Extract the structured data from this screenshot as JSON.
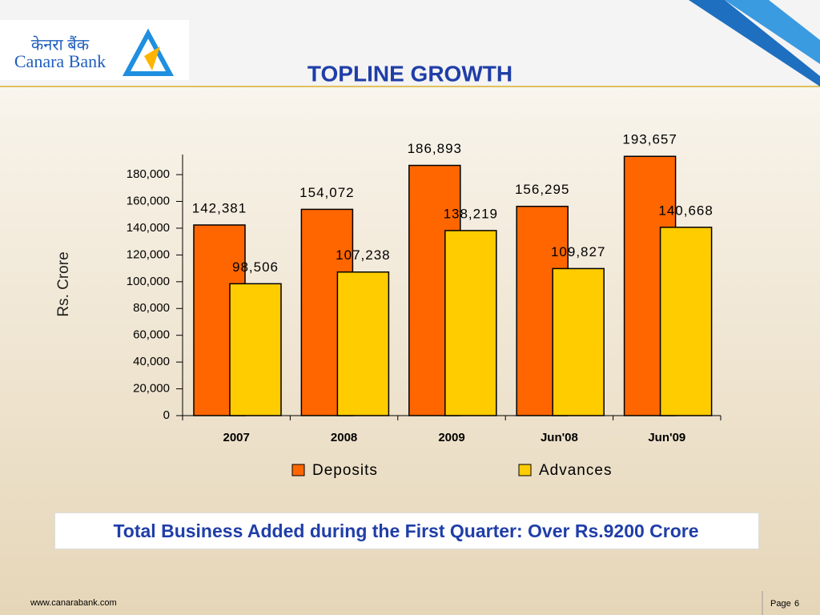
{
  "header": {
    "logo_hindi": "केनरा बैंक",
    "logo_text": "Canara Bank",
    "title": "TOPLINE GROWTH"
  },
  "chart_data": {
    "type": "bar",
    "ylabel": "Rs. Crore",
    "categories": [
      "2007",
      "2008",
      "2009",
      "Jun'08",
      "Jun'09"
    ],
    "series": [
      {
        "name": "Deposits",
        "color": "#ff6600",
        "values": [
          142381,
          154072,
          186893,
          156295,
          193657
        ],
        "value_labels": [
          "142,381",
          "154,072",
          "186,893",
          "156,295",
          "193,657"
        ]
      },
      {
        "name": "Advances",
        "color": "#ffcc00",
        "values": [
          98506,
          107238,
          138219,
          109827,
          140668
        ],
        "value_labels": [
          "98,506",
          "107,238",
          "138,219",
          "109,827",
          "140,668"
        ]
      }
    ],
    "ylim": [
      0,
      195000
    ],
    "yticks": [
      0,
      {
        "value": 20000,
        "label": "20,000"
      },
      {
        "value": 40000,
        "label": "40,000"
      },
      {
        "value": 60000,
        "label": "60,000"
      },
      {
        "value": 80000,
        "label": "80,000"
      },
      {
        "value": 100000,
        "label": "100,000"
      },
      {
        "value": 120000,
        "label": "120,000"
      },
      {
        "value": 140000,
        "label": "140,000"
      },
      {
        "value": 160000,
        "label": "160,000"
      },
      {
        "value": 180000,
        "label": "180,000"
      }
    ]
  },
  "note": "Total Business Added during the First Quarter: Over Rs.9200 Crore",
  "footer": {
    "url": "www.canarabank.com",
    "page_label": "Page",
    "page_number": "6"
  }
}
